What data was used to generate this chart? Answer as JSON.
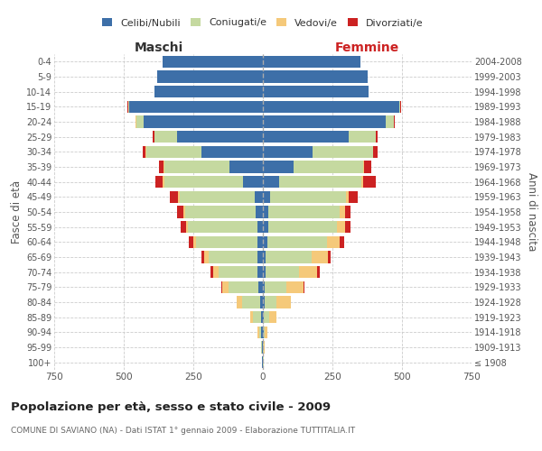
{
  "age_groups": [
    "100+",
    "95-99",
    "90-94",
    "85-89",
    "80-84",
    "75-79",
    "70-74",
    "65-69",
    "60-64",
    "55-59",
    "50-54",
    "45-49",
    "40-44",
    "35-39",
    "30-34",
    "25-29",
    "20-24",
    "15-19",
    "10-14",
    "5-9",
    "0-4"
  ],
  "birth_years": [
    "≤ 1908",
    "1909-1913",
    "1914-1918",
    "1919-1923",
    "1924-1928",
    "1929-1933",
    "1934-1938",
    "1939-1943",
    "1944-1948",
    "1949-1953",
    "1954-1958",
    "1959-1963",
    "1964-1968",
    "1969-1973",
    "1974-1978",
    "1979-1983",
    "1984-1988",
    "1989-1993",
    "1994-1998",
    "1999-2003",
    "2004-2008"
  ],
  "male_celibi": [
    2,
    2,
    5,
    5,
    10,
    15,
    20,
    20,
    20,
    20,
    25,
    30,
    70,
    120,
    220,
    310,
    430,
    480,
    390,
    380,
    360
  ],
  "male_coniugati": [
    2,
    3,
    8,
    30,
    65,
    110,
    140,
    175,
    220,
    250,
    255,
    270,
    285,
    235,
    200,
    80,
    25,
    5,
    0,
    0,
    0
  ],
  "male_vedovi": [
    0,
    1,
    5,
    10,
    20,
    20,
    20,
    15,
    10,
    5,
    5,
    5,
    5,
    2,
    2,
    1,
    2,
    0,
    0,
    0,
    0
  ],
  "male_divorziati": [
    0,
    0,
    0,
    0,
    0,
    5,
    8,
    10,
    15,
    20,
    25,
    30,
    25,
    15,
    10,
    5,
    2,
    1,
    0,
    0,
    0
  ],
  "female_celibi": [
    1,
    1,
    2,
    3,
    5,
    5,
    10,
    10,
    15,
    20,
    20,
    25,
    60,
    110,
    180,
    310,
    440,
    490,
    380,
    375,
    350
  ],
  "female_coniugati": [
    2,
    3,
    5,
    20,
    45,
    80,
    120,
    165,
    215,
    245,
    255,
    275,
    295,
    250,
    215,
    95,
    30,
    5,
    0,
    0,
    0
  ],
  "female_vedovi": [
    1,
    2,
    10,
    25,
    50,
    60,
    65,
    60,
    45,
    30,
    20,
    10,
    5,
    3,
    2,
    1,
    1,
    0,
    0,
    0,
    0
  ],
  "female_divorziati": [
    0,
    0,
    0,
    0,
    2,
    5,
    8,
    10,
    18,
    20,
    20,
    30,
    45,
    25,
    15,
    5,
    2,
    1,
    0,
    0,
    0
  ],
  "color_celibi": "#3d6fa8",
  "color_coniugati": "#c5d9a0",
  "color_vedovi": "#f5c97a",
  "color_divorziati": "#cc2222",
  "title": "Popolazione per età, sesso e stato civile - 2009",
  "subtitle": "COMUNE DI SAVIANO (NA) - Dati ISTAT 1° gennaio 2009 - Elaborazione TUTTITALIA.IT",
  "ylabel_left": "Fasce di età",
  "ylabel_right": "Anni di nascita",
  "xlabel_left": "Maschi",
  "xlabel_right": "Femmine",
  "xlim": 750,
  "bg_color": "#ffffff",
  "grid_color": "#cccccc"
}
